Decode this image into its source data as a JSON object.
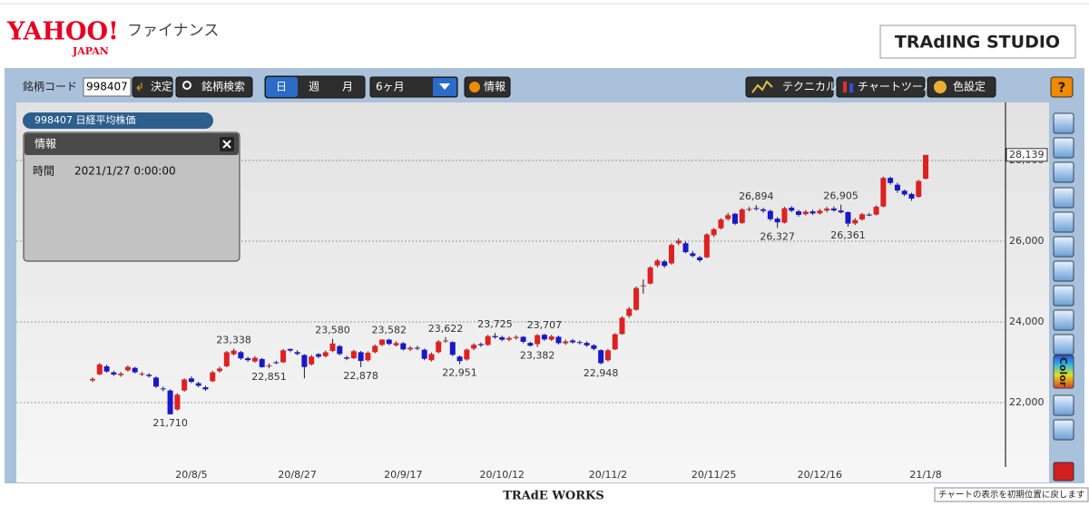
{
  "header": {
    "logo": "YAHOO!",
    "logo_sub": "JAPAN",
    "service": "ファイナンス",
    "studio_button": "TRAdING STUDIO"
  },
  "toolbar": {
    "code_label": "銘柄コード",
    "code_value": "998407",
    "decide": "決定",
    "search": "銘柄検索",
    "day": "日",
    "week": "週",
    "month": "月",
    "period": "6ヶ月",
    "info": "情報",
    "technical": "テクニカル",
    "chart_tool": "チャートツール",
    "color_setting": "色設定",
    "help": "?"
  },
  "symbol_tab": "998407 日経平均株価",
  "info_panel": {
    "title": "情報",
    "time_label": "時間",
    "time_value": "2021/1/27 0:00:00"
  },
  "side_tools": {
    "color_label": "Color"
  },
  "footer": {
    "brand": "TRAdE WORKS",
    "tooltip": "チャートの表示を初期位置に戻します"
  },
  "chart_data": {
    "type": "candlestick",
    "up_color": "#e02020",
    "down_color": "#1818c8",
    "grid": true,
    "ylim": [
      20404,
      29438
    ],
    "yticks": [
      {
        "value": 22000,
        "label": "22,000"
      },
      {
        "value": 24000,
        "label": "24,000"
      },
      {
        "value": 26000,
        "label": "26,000"
      },
      {
        "value": 28000,
        "label": "28,000"
      }
    ],
    "categories": [
      null,
      null,
      null,
      null,
      null,
      null,
      null,
      null,
      null,
      null,
      null,
      null,
      null,
      null,
      "20/8/5",
      null,
      null,
      null,
      null,
      null,
      null,
      null,
      null,
      null,
      null,
      null,
      null,
      null,
      null,
      "20/8/27",
      null,
      null,
      null,
      null,
      null,
      null,
      null,
      null,
      null,
      null,
      null,
      null,
      null,
      null,
      "20/9/17",
      null,
      null,
      null,
      null,
      null,
      null,
      null,
      null,
      null,
      null,
      null,
      null,
      null,
      "20/10/12",
      null,
      null,
      null,
      null,
      null,
      null,
      null,
      null,
      null,
      null,
      null,
      null,
      null,
      null,
      "20/11/2",
      null,
      null,
      null,
      null,
      null,
      null,
      null,
      null,
      null,
      null,
      null,
      null,
      null,
      null,
      "20/11/25",
      null,
      null,
      null,
      null,
      null,
      null,
      null,
      null,
      null,
      null,
      null,
      null,
      null,
      null,
      "20/12/16",
      null,
      null,
      null,
      null,
      null,
      null,
      null,
      null,
      null,
      null,
      null,
      null,
      null,
      null,
      "21/1/8"
    ],
    "open": [
      22550,
      22700,
      22900,
      22750,
      22680,
      22800,
      22860,
      22700,
      22690,
      22620,
      22350,
      22300,
      21830,
      22300,
      22600,
      22480,
      22380,
      22530,
      22780,
      22900,
      23200,
      23250,
      23100,
      23020,
      23080,
      22900,
      23000,
      23000,
      23330,
      23250,
      23180,
      22950,
      23200,
      23150,
      23280,
      23400,
      23120,
      23100,
      23250,
      23050,
      23250,
      23430,
      23560,
      23420,
      23470,
      23320,
      23360,
      23310,
      23050,
      23250,
      23530,
      23500,
      23140,
      23070,
      23340,
      23450,
      23430,
      23650,
      23620,
      23560,
      23600,
      23630,
      23480,
      23450,
      23680,
      23560,
      23630,
      23470,
      23540,
      23500,
      23480,
      23420,
      23300,
      23050,
      23320,
      23700,
      24150,
      24300,
      24900,
      24950,
      25400,
      25500,
      25450,
      25950,
      25950,
      25700,
      25600,
      25600,
      26150,
      26320,
      26550,
      26680,
      26450,
      26780,
      26820,
      26790,
      26750,
      26560,
      26460,
      26830,
      26740,
      26670,
      26740,
      26690,
      26760,
      26810,
      26760,
      26720,
      26440,
      26540,
      26660,
      26660,
      26860,
      27570,
      27400,
      27250,
      27170,
      27100,
      27550
    ],
    "high": [
      22630,
      22980,
      22940,
      22790,
      22760,
      22920,
      22890,
      22760,
      22730,
      22650,
      22400,
      22330,
      22230,
      22600,
      22650,
      22520,
      22420,
      22790,
      22890,
      23280,
      23338,
      23280,
      23140,
      23150,
      23110,
      22970,
      23040,
      23330,
      23335,
      23300,
      23200,
      23180,
      23230,
      23290,
      23580,
      23430,
      23160,
      23310,
      23280,
      23270,
      23440,
      23575,
      23582,
      23520,
      23500,
      23400,
      23410,
      23340,
      23240,
      23550,
      23622,
      23520,
      23170,
      23340,
      23470,
      23490,
      23680,
      23725,
      23660,
      23640,
      23670,
      23650,
      23510,
      23700,
      23707,
      23680,
      23660,
      23560,
      23580,
      23540,
      23520,
      23450,
      23320,
      23330,
      23720,
      24140,
      24370,
      24880,
      25050,
      25380,
      25560,
      25540,
      25950,
      26070,
      26000,
      25760,
      25640,
      26200,
      26330,
      26570,
      26700,
      26700,
      26820,
      26850,
      26894,
      26830,
      26780,
      26600,
      26850,
      26870,
      26780,
      26770,
      26780,
      26800,
      26850,
      26860,
      26905,
      26740,
      26570,
      26700,
      26700,
      26890,
      27600,
      27600,
      27450,
      27280,
      27200,
      27520,
      28139
    ],
    "low": [
      22510,
      22680,
      22740,
      22660,
      22640,
      22770,
      22720,
      22660,
      22620,
      22360,
      22280,
      21710,
      21800,
      22270,
      22480,
      22380,
      22290,
      22510,
      22740,
      22880,
      23170,
      23060,
      23010,
      22990,
      22860,
      22851,
      22950,
      22980,
      23250,
      23170,
      22600,
      22920,
      23100,
      23120,
      23250,
      23170,
      23050,
      23080,
      22878,
      23020,
      23220,
      23400,
      23420,
      23390,
      23290,
      23280,
      23300,
      23050,
      23020,
      23220,
      23480,
      23150,
      22951,
      23040,
      23300,
      23380,
      23410,
      23580,
      23520,
      23520,
      23560,
      23470,
      23390,
      23382,
      23530,
      23530,
      23440,
      23430,
      23460,
      23440,
      23380,
      23290,
      22948,
      23020,
      23300,
      23680,
      24100,
      24280,
      24700,
      24930,
      25350,
      25340,
      25420,
      25900,
      25700,
      25600,
      25480,
      25580,
      26100,
      26290,
      26510,
      26400,
      26430,
      26740,
      26760,
      26700,
      26500,
      26327,
      26440,
      26720,
      26610,
      26640,
      26650,
      26660,
      26720,
      26730,
      26690,
      26361,
      26400,
      26510,
      26620,
      26640,
      26840,
      27400,
      27200,
      27120,
      27000,
      27080,
      27530
    ],
    "close": [
      22587,
      22945,
      22770,
      22696,
      22717,
      22884,
      22751,
      22715,
      22657,
      22397,
      22339,
      21710,
      22195,
      22573,
      22514,
      22418,
      22329,
      22750,
      22843,
      23249,
      23289,
      23096,
      23051,
      23110,
      22880,
      22920,
      22985,
      23296,
      23290,
      23208,
      22882,
      23139,
      23138,
      23247,
      23465,
      23205,
      23089,
      23274,
      23032,
      23235,
      23406,
      23559,
      23454,
      23475,
      23319,
      23360,
      23346,
      23087,
      23204,
      23511,
      23539,
      23185,
      23029,
      23312,
      23433,
      23422,
      23647,
      23619,
      23558,
      23601,
      23626,
      23507,
      23410,
      23671,
      23567,
      23639,
      23474,
      23516,
      23494,
      23485,
      23418,
      23331,
      22977,
      23295,
      23695,
      24105,
      24325,
      24839,
      24905,
      25349,
      25520,
      25385,
      25906,
      26014,
      25728,
      25634,
      25527,
      26165,
      26296,
      26537,
      26644,
      26433,
      26787,
      26800,
      26809,
      26751,
      26547,
      26467,
      26817,
      26756,
      26652,
      26732,
      26687,
      26757,
      26806,
      26763,
      26714,
      26436,
      26524,
      26668,
      26656,
      26854,
      27568,
      27444,
      27258,
      27158,
      27055,
      27490,
      28139
    ],
    "high_annotations": [
      {
        "index": 20,
        "label": "23,338"
      },
      {
        "index": 34,
        "label": "23,580"
      },
      {
        "index": 42,
        "label": "23,582"
      },
      {
        "index": 50,
        "label": "23,622"
      },
      {
        "index": 57,
        "label": "23,725"
      },
      {
        "index": 64,
        "label": "23,707"
      },
      {
        "index": 94,
        "label": "26,894"
      },
      {
        "index": 106,
        "label": "26,905"
      }
    ],
    "low_annotations": [
      {
        "index": 11,
        "label": "21,710"
      },
      {
        "index": 25,
        "label": "22,851"
      },
      {
        "index": 38,
        "label": "22,878"
      },
      {
        "index": 52,
        "label": "22,951"
      },
      {
        "index": 63,
        "label": "23,382"
      },
      {
        "index": 72,
        "label": "22,948"
      },
      {
        "index": 97,
        "label": "26,327"
      },
      {
        "index": 107,
        "label": "26,361"
      }
    ],
    "last_price_label": "28,139"
  }
}
